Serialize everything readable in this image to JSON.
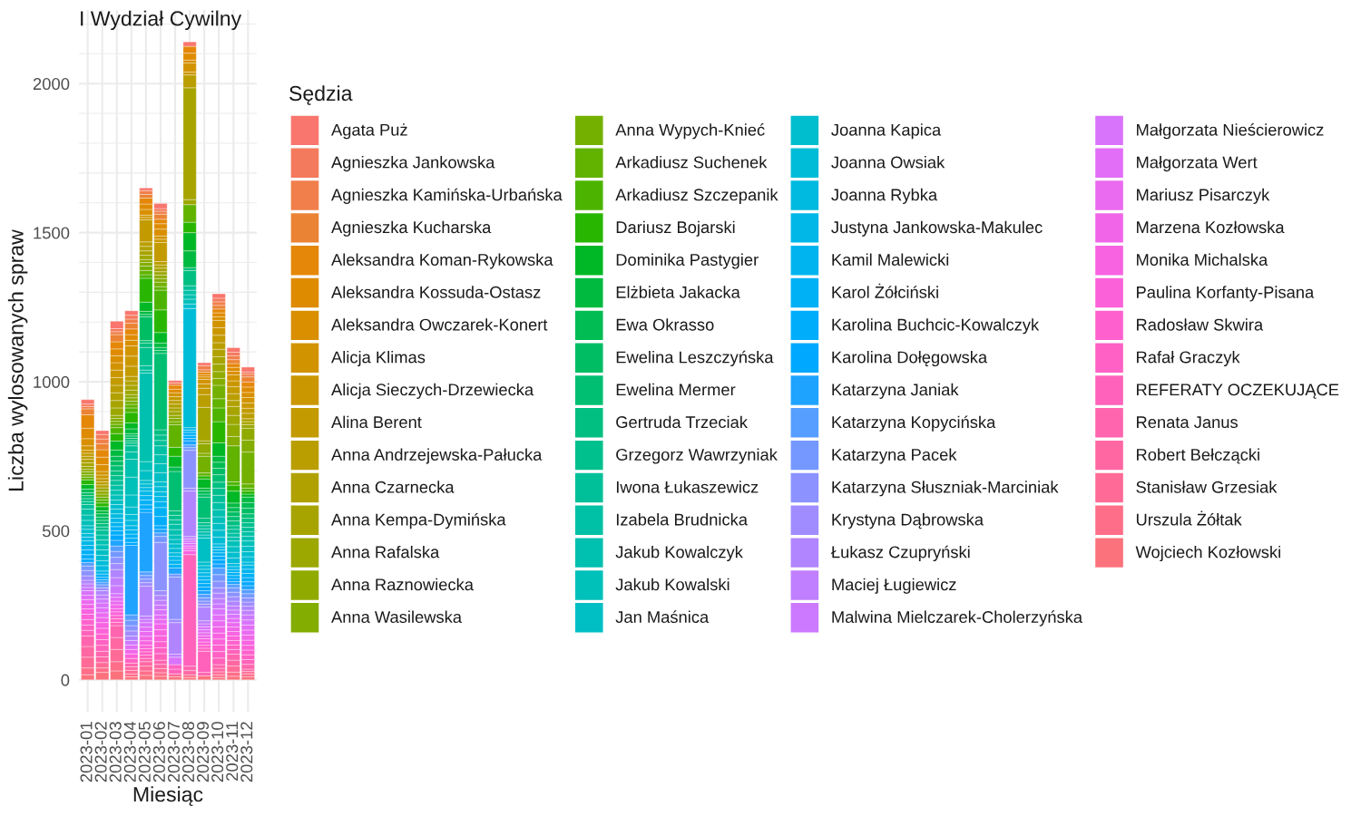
{
  "chart_data": {
    "type": "bar",
    "stacked": true,
    "title": "I Wydział Cywilny",
    "xlabel": "Miesiąc",
    "ylabel": "Liczba wylosowanych spraw",
    "legend_title": "Sędzia",
    "legend": "right",
    "grid": true,
    "categories": [
      "2023-01",
      "2023-02",
      "2023-03",
      "2023-04",
      "2023-05",
      "2023-06",
      "2023-07",
      "2023-08",
      "2023-09",
      "2023-10",
      "2023-11",
      "2023-12"
    ],
    "ylim": [
      -107,
      2247
    ],
    "yticks": [
      0,
      {
        "value": 100,
        "label": null
      },
      {
        "value": 200,
        "label": null
      },
      {
        "value": 300,
        "label": null
      },
      {
        "value": 400,
        "label": null
      },
      500,
      {
        "value": 600,
        "label": null
      },
      {
        "value": 700,
        "label": null
      },
      {
        "value": 800,
        "label": null
      },
      {
        "value": 900,
        "label": null
      },
      1000,
      {
        "value": 1100,
        "label": null
      },
      {
        "value": 1200,
        "label": null
      },
      {
        "value": 1300,
        "label": null
      },
      {
        "value": 1400,
        "label": null
      },
      1500,
      {
        "value": 1600,
        "label": null
      },
      {
        "value": 1700,
        "label": null
      },
      {
        "value": 1800,
        "label": null
      },
      {
        "value": 1900,
        "label": null
      },
      2000,
      {
        "value": 2100,
        "label": null
      },
      {
        "value": 2200,
        "label": null
      }
    ],
    "series": [
      {
        "name": "Wojciech Kozłowski",
        "color": "#FB727C",
        "values": [
          17,
          25,
          30,
          10,
          15,
          12,
          10,
          8,
          13,
          8,
          12,
          10
        ]
      },
      {
        "name": "Urszula Żółtak",
        "color": "#FE6E89",
        "values": [
          23,
          15,
          31,
          10,
          15,
          12,
          null,
          9,
          null,
          9,
          14,
          10
        ]
      },
      {
        "name": "Stanisław Grzesiak",
        "color": "#FF6B96",
        "values": [
          36,
          18,
          41,
          12,
          16,
          14,
          10,
          null,
          null,
          10,
          20,
          8
        ]
      },
      {
        "name": "Robert Bełczącki",
        "color": "#FF67A3",
        "values": [
          36,
          19,
          40,
          12,
          15,
          14,
          null,
          14,
          null,
          12,
          20,
          8
        ]
      },
      {
        "name": "Renata Janus",
        "color": "#FF65AE",
        "values": [
          35,
          19,
          40,
          12,
          11,
          14,
          null,
          15,
          12,
          12,
          20,
          16
        ]
      },
      {
        "name": "REFERATY OCZEKUJĄCE",
        "color": "#FF62BA",
        "values": [
          19,
          20,
          11,
          null,
          11,
          22,
          16,
          374,
          71,
          22,
          16,
          16
        ]
      },
      {
        "name": "Rafał Graczyk",
        "color": "#FF61C4",
        "values": [
          18,
          19,
          12,
          16,
          11,
          20,
          15,
          null,
          10,
          22,
          15,
          16
        ]
      },
      {
        "name": "Radosław Skwira",
        "color": "#FE61CE",
        "values": [
          18,
          19,
          11,
          null,
          11,
          20,
          null,
          null,
          10,
          22,
          15,
          16
        ]
      },
      {
        "name": "Paulina Korfanty-Pisana",
        "color": "#FB61D8",
        "values": [
          18,
          19,
          12,
          15,
          11,
          20,
          null,
          null,
          11,
          20,
          15,
          16
        ]
      },
      {
        "name": "Monika Michalska",
        "color": "#F763E1",
        "values": [
          18,
          19,
          11,
          null,
          15,
          20,
          null,
          13,
          11,
          20,
          15,
          17
        ]
      },
      {
        "name": "Marzena Kozłowska",
        "color": "#F166E9",
        "values": [
          15,
          17,
          13,
          15,
          15,
          20,
          null,
          8,
          10,
          21,
          15,
          17
        ]
      },
      {
        "name": "Mariusz Pisarczyk",
        "color": "#EA6AF0",
        "values": [
          16,
          16,
          12,
          null,
          16,
          15,
          null,
          8,
          10,
          20,
          15,
          17
        ]
      },
      {
        "name": "Małgorzata Wert",
        "color": "#E26EF7",
        "values": [
          15,
          17,
          13,
          15,
          15,
          15,
          null,
          8,
          10,
          20,
          14,
          17
        ]
      },
      {
        "name": "Małgorzata Nieścierowicz",
        "color": "#D873FC",
        "values": [
          15,
          16,
          12,
          null,
          15,
          17,
          25,
          8,
          10,
          20,
          14,
          17
        ]
      },
      {
        "name": "Malwina Mielczarek-Cholerzyńska",
        "color": "#CD79FF",
        "values": [
          11,
          13,
          27,
          15,
          11,
          16,
          null,
          8,
          10,
          17,
          14,
          17
        ]
      },
      {
        "name": "Maciej Ługiewicz",
        "color": "#C07FFF",
        "values": [
          12,
          14,
          27,
          null,
          11,
          16,
          10,
          8,
          10,
          18,
          14,
          15
        ]
      },
      {
        "name": "Łukasz Czupryński",
        "color": "#B185FF",
        "values": [
          12,
          14,
          27,
          15,
          100,
          16,
          106,
          152,
          46,
          18,
          16,
          14
        ]
      },
      {
        "name": "Krystyna Dąbrowska",
        "color": "#A08CFF",
        "values": [
          15,
          10,
          20,
          17,
          12,
          16,
          11,
          10,
          10,
          18,
          15,
          14
        ]
      },
      {
        "name": "Katarzyna Słuszniak-Marciniak",
        "color": "#8C92FF",
        "values": [
          18,
          null,
          21,
          18,
          12,
          162,
          142,
          127,
          10,
          22,
          15,
          14
        ]
      },
      {
        "name": "Katarzyna Pacek",
        "color": "#7498FF",
        "values": [
          15,
          10,
          20,
          18,
          12,
          20,
          10,
          9,
          11,
          22,
          15,
          14
        ]
      },
      {
        "name": "Katarzyna Kopycińska",
        "color": "#569EFF",
        "values": [
          12,
          9,
          18,
          18,
          12,
          12,
          null,
          9,
          12,
          22,
          11,
          14
        ]
      },
      {
        "name": "Katarzyna Janiak",
        "color": "#1EA3FF",
        "values": [
          null,
          8,
          19,
          233,
          200,
          12,
          20,
          14,
          12,
          14,
          10,
          13
        ]
      },
      {
        "name": "Karolina Dołęgowska",
        "color": "#00A8FF",
        "values": [
          11,
          8,
          18,
          10,
          10,
          12,
          null,
          8,
          12,
          13,
          10,
          13
        ]
      },
      {
        "name": "Karolina Buchcic-Kowalczyk",
        "color": "#00ADFB",
        "values": [
          15,
          null,
          14,
          14,
          15,
          31,
          null,
          10,
          12,
          13,
          10,
          14
        ]
      },
      {
        "name": "Karol Żółciński",
        "color": "#00B1F5",
        "values": [
          16,
          11,
          14,
          14,
          16,
          30,
          13,
          10,
          12,
          11,
          10,
          14
        ]
      },
      {
        "name": "Kamil Malewicki",
        "color": "#00B4EF",
        "values": [
          15,
          null,
          14,
          14,
          15,
          20,
          13,
          8,
          12,
          10,
          10,
          14
        ]
      },
      {
        "name": "Justyna Jankowska-Makulec",
        "color": "#00B7E8",
        "values": [
          15,
          10,
          14,
          14,
          15,
          17,
          13,
          8,
          12,
          10,
          10,
          14
        ]
      },
      {
        "name": "Joanna Rybka",
        "color": "#00BAE0",
        "values": [
          13,
          18,
          15,
          18,
          12,
          16,
          12,
          null,
          12,
          10,
          10,
          10
        ]
      },
      {
        "name": "Joanna Owsiak",
        "color": "#00BCD7",
        "values": [
          12,
          17,
          16,
          20,
          12,
          17,
          15,
          400,
          12,
          23,
          19,
          18
        ]
      },
      {
        "name": "Joanna Kapica",
        "color": "#00BECE",
        "values": [
          14,
          18,
          15,
          25,
          12,
          16,
          15,
          15,
          12,
          23,
          19,
          17
        ]
      },
      {
        "name": "Jan Maśnica",
        "color": "#00BFC4",
        "values": [
          12,
          18,
          15,
          40,
          33,
          31,
          15,
          null,
          81,
          23,
          19,
          18
        ]
      },
      {
        "name": "Jakub Kowalski",
        "color": "#00C0BA",
        "values": [
          18,
          17,
          17,
          60,
          30,
          30,
          15,
          16,
          10,
          22,
          19,
          18
        ]
      },
      {
        "name": "Jakub Kowalczyk",
        "color": "#00C0B0",
        "values": [
          18,
          16,
          16,
          60,
          297,
          30,
          18,
          15,
          10,
          24,
          13,
          16
        ]
      },
      {
        "name": "Izabela Brudnicka",
        "color": "#00C1A5",
        "values": [
          20,
          17,
          17,
          25,
          10,
          30,
          18,
          15,
          11,
          24,
          13,
          15
        ]
      },
      {
        "name": "Iwona Łukaszewicz",
        "color": "#00C099",
        "values": [
          15,
          16,
          16,
          20,
          15,
          18,
          15,
          15,
          10,
          24,
          13,
          15
        ]
      },
      {
        "name": "Grzegorz Wawrzyniak",
        "color": "#00C08D",
        "values": [
          10,
          11,
          16,
          9,
          61,
          18,
          15,
          null,
          10,
          24,
          12,
          15
        ]
      },
      {
        "name": "Gertruda Trzeciak",
        "color": "#00BF80",
        "values": [
          10,
          11,
          16,
          8,
          15,
          18,
          15,
          51,
          15,
          20,
          16,
          15
        ]
      },
      {
        "name": "Ewelina Mermer",
        "color": "#00BE72",
        "values": [
          10,
          11,
          17,
          8,
          8,
          256,
          132,
          10,
          71,
          25,
          15,
          15
        ]
      },
      {
        "name": "Ewelina Leszczyńska",
        "color": "#00BD64",
        "values": [
          10,
          11,
          16,
          8,
          80,
          10,
          null,
          null,
          10,
          22,
          15,
          19
        ]
      },
      {
        "name": "Ewa Okrasso",
        "color": "#00BC53",
        "values": [
          12,
          11,
          16,
          8,
          8,
          10,
          15,
          null,
          10,
          20,
          15,
          19
        ]
      },
      {
        "name": "Elżbieta Jakacka",
        "color": "#00BA40",
        "values": [
          null,
          10,
          21,
          16,
          10,
          15,
          null,
          56,
          10,
          20,
          15,
          18
        ]
      },
      {
        "name": "Dominika Pastygier",
        "color": "#00B825",
        "values": [
          15,
          14,
          30,
          20,
          31,
          35,
          36,
          61,
          31,
          45,
          40,
          10
        ]
      },
      {
        "name": "Dariusz Bojarski",
        "color": "#29B600",
        "values": [
          16,
          12,
          25,
          35,
          80,
          76,
          30,
          35,
          10,
          71,
          20,
          10
        ]
      },
      {
        "name": "Arkadiusz Szczepanik",
        "color": "#4CB400",
        "values": [
          null,
          10,
          20,
          15,
          12,
          66,
          null,
          null,
          null,
          46,
          11,
          10
        ]
      },
      {
        "name": "Arkadiusz Suchenek",
        "color": "#62B200",
        "values": [
          9,
          10,
          11,
          12,
          14,
          12,
          76,
          59,
          10,
          31,
          121,
          14
        ]
      },
      {
        "name": "Anna Wypych-Knieć",
        "color": "#74B000",
        "values": [
          8,
          null,
          10,
          11,
          15,
          15,
          10,
          null,
          56,
          45,
          null,
          107
        ]
      },
      {
        "name": "Anna Wasilewska",
        "color": "#83AD00",
        "values": [
          10,
          10,
          10,
          11,
          12,
          12,
          11,
          null,
          10,
          23,
          31,
          40
        ]
      },
      {
        "name": "Anna Raznowiecka",
        "color": "#90AA00",
        "values": [
          8,
          10,
          10,
          11,
          10,
          12,
          10,
          null,
          32,
          23,
          41,
          40
        ]
      },
      {
        "name": "Anna Rafalska",
        "color": "#9CA700",
        "values": [
          10,
          11,
          25,
          15,
          14,
          11,
          13,
          17,
          10,
          25,
          30,
          12
        ]
      },
      {
        "name": "Anna Kempa-Dymińska",
        "color": "#A7A400",
        "values": [
          12,
          null,
          25,
          16,
          15,
          12,
          12,
          375,
          112,
          25,
          30,
          10
        ]
      },
      {
        "name": "Anna Czarnecka",
        "color": "#B1A100",
        "values": [
          12,
          10,
          26,
          15,
          15,
          11,
          13,
          null,
          null,
          25,
          20,
          10
        ]
      },
      {
        "name": "Anna Andrzejewska-Pałucka",
        "color": "#BA9E00",
        "values": [
          10,
          10,
          25,
          15,
          15,
          11,
          12,
          43,
          43,
          22,
          23,
          18
        ]
      },
      {
        "name": "Alina Berent",
        "color": "#C39A00",
        "values": [
          10,
          11,
          26,
          34,
          74,
          64,
          13,
          null,
          21,
          25,
          23,
          17
        ]
      },
      {
        "name": "Alicja Sieczych-Drzewiecka",
        "color": "#CB9700",
        "values": [
          10,
          12,
          25,
          34,
          8,
          11,
          null,
          10,
          15,
          25,
          20,
          18
        ]
      },
      {
        "name": "Alicja Klimas",
        "color": "#D29300",
        "values": [
          15,
          12,
          25,
          34,
          8,
          11,
          13,
          30,
          15,
          25,
          20,
          18
        ]
      },
      {
        "name": "Aleksandra Owczarek-Konert",
        "color": "#D98F00",
        "values": [
          24,
          23,
          23,
          19,
          19,
          23,
          null,
          10,
          8,
          12,
          12,
          17
        ]
      },
      {
        "name": "Aleksandra Kossuda-Ostasz",
        "color": "#DF8B00",
        "values": [
          35,
          25,
          23,
          19,
          18,
          18,
          12,
          23,
          8,
          13,
          13,
          18
        ]
      },
      {
        "name": "Aleksandra Koman-Rykowska",
        "color": "#E58709",
        "values": [
          45,
          25,
          24,
          19,
          20,
          15,
          13,
          23,
          8,
          13,
          13,
          17
        ]
      },
      {
        "name": "Agnieszka Kucharska",
        "color": "#EB8334",
        "values": [
          20,
          20,
          24,
          19,
          12,
          17,
          null,
          null,
          8,
          12,
          13,
          17
        ]
      },
      {
        "name": "Agnieszka Kamińska-Urbańska",
        "color": "#F07F4B",
        "values": [
          8,
          16,
          10,
          14,
          13,
          10,
          8,
          null,
          14,
          12,
          13,
          9
        ]
      },
      {
        "name": "Agnieszka Jankowska",
        "color": "#F47A5D",
        "values": [
          8,
          15,
          10,
          13,
          null,
          9,
          null,
          null,
          null,
          12,
          12,
          8
        ]
      },
      {
        "name": "Agata Puż",
        "color": "#F8766D",
        "values": [
          15,
          13,
          25,
          15,
          9,
          17,
          8,
          15,
          10,
          15,
          15,
          16
        ]
      }
    ]
  }
}
